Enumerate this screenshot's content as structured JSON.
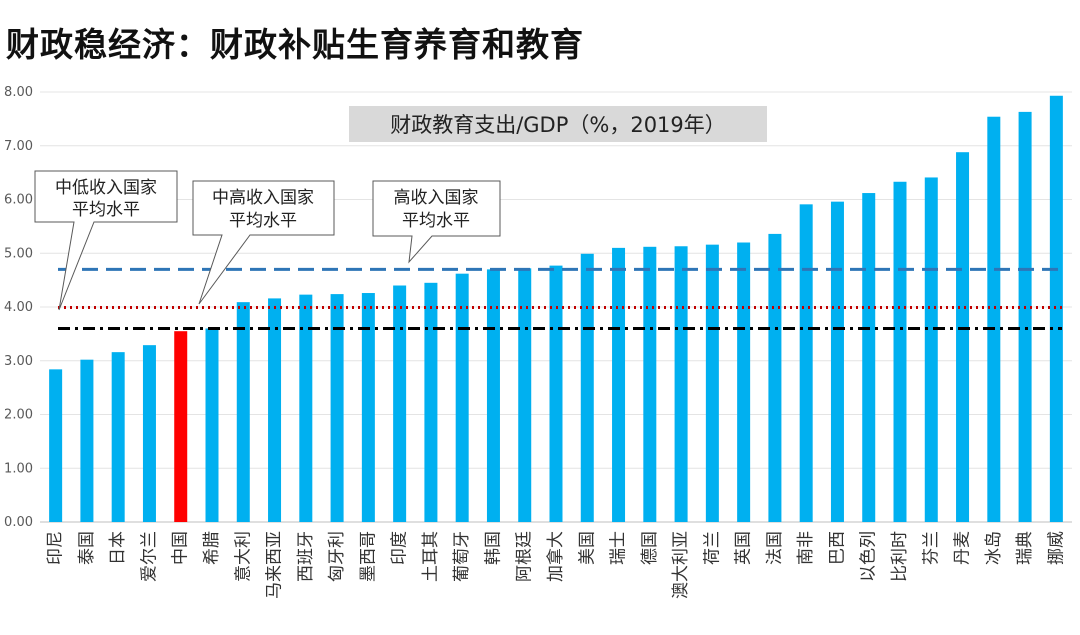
{
  "page": {
    "title": "财政稳经济：财政补贴生育养育和教育"
  },
  "chart_data": {
    "type": "bar",
    "title": "财政教育支出/GDP（%，2019年）",
    "xlabel": "",
    "ylabel": "",
    "ylim": [
      0,
      8
    ],
    "yticks": [
      "0.00",
      "1.00",
      "2.00",
      "3.00",
      "4.00",
      "5.00",
      "6.00",
      "7.00",
      "8.00"
    ],
    "grid": true,
    "categories": [
      "印尼",
      "泰国",
      "日本",
      "爱尔兰",
      "中国",
      "希腊",
      "意大利",
      "马来西亚",
      "西班牙",
      "匈牙利",
      "墨西哥",
      "印度",
      "土耳其",
      "葡萄牙",
      "韩国",
      "阿根廷",
      "加拿大",
      "美国",
      "瑞士",
      "德国",
      "澳大利亚",
      "荷兰",
      "英国",
      "法国",
      "南非",
      "巴西",
      "以色列",
      "比利时",
      "芬兰",
      "丹麦",
      "冰岛",
      "瑞典",
      "挪威"
    ],
    "values": [
      2.84,
      3.02,
      3.16,
      3.29,
      3.55,
      3.6,
      4.09,
      4.16,
      4.23,
      4.24,
      4.26,
      4.4,
      4.45,
      4.62,
      4.7,
      4.72,
      4.77,
      4.99,
      5.1,
      5.12,
      5.13,
      5.16,
      5.2,
      5.36,
      5.91,
      5.96,
      6.12,
      6.33,
      6.41,
      6.88,
      7.54,
      7.63,
      7.93
    ],
    "bar_color": "#00B0F0",
    "highlight": {
      "category": "中国",
      "color": "#FF0000"
    },
    "reference_lines": [
      {
        "label": "高收入国家平均水平",
        "value": 4.7,
        "color": "#2E75B6",
        "style": "dashed"
      },
      {
        "label": "中高收入国家平均水平",
        "value": 3.99,
        "color": "#C00000",
        "style": "dotted"
      },
      {
        "label": "中低收入国家平均水平",
        "value": 3.6,
        "color": "#000000",
        "style": "dash-dot"
      }
    ],
    "annotations": [
      {
        "lines": [
          "中低收入国家",
          "平均水平"
        ]
      },
      {
        "lines": [
          "中高收入国家",
          "平均水平"
        ]
      },
      {
        "lines": [
          "高收入国家",
          "平均水平"
        ]
      }
    ]
  }
}
